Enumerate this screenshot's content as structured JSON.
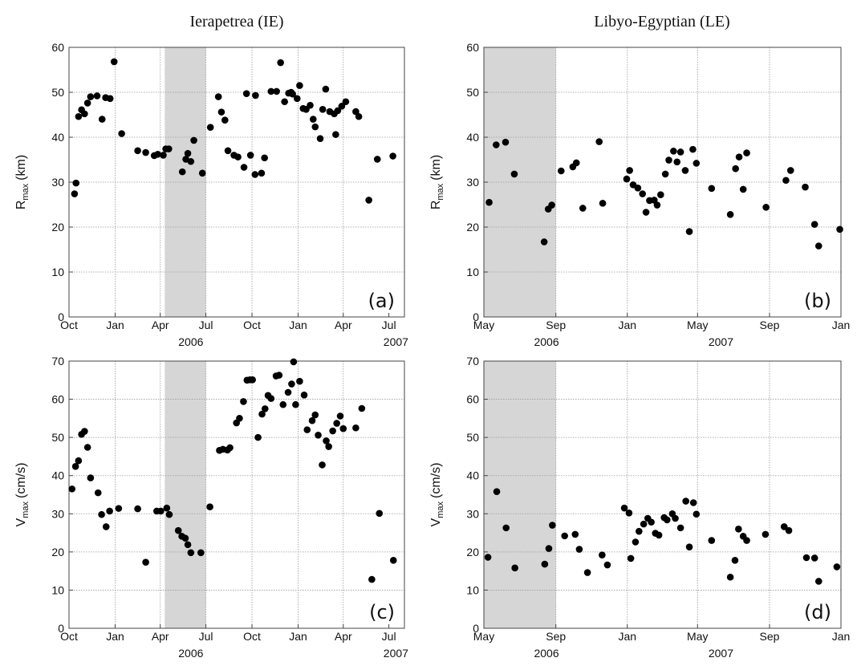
{
  "chart_data": [
    {
      "id": "a",
      "type": "scatter",
      "title": "Ierapetrea (IE)",
      "panel_label": "(a)",
      "ylabel": "R",
      "ylabel_sub": "max",
      "ylabel_unit": "(km)",
      "x_range": [
        "2005-10-01",
        "2007-08-01"
      ],
      "ylim": [
        0,
        60
      ],
      "yticks": [
        0,
        10,
        20,
        30,
        40,
        50,
        60
      ],
      "x_ticks": [
        {
          "date": "2005-10-01",
          "label": "Oct"
        },
        {
          "date": "2006-01-01",
          "label": "Jan"
        },
        {
          "date": "2006-04-01",
          "label": "Apr"
        },
        {
          "date": "2006-07-01",
          "label": "Jul"
        },
        {
          "date": "2006-10-01",
          "label": "Oct"
        },
        {
          "date": "2007-01-01",
          "label": "Jan"
        },
        {
          "date": "2007-04-01",
          "label": "Apr"
        },
        {
          "date": "2007-07-01",
          "label": "Jul"
        }
      ],
      "years": [
        {
          "label": "2006",
          "date": "2006-06-01"
        },
        {
          "label": "2007",
          "date": "2007-07-15"
        }
      ],
      "shaded": [
        "2006-04-10",
        "2006-07-01"
      ],
      "grid": true,
      "points": [
        [
          "2005-10-12",
          27.4
        ],
        [
          "2005-10-15",
          29.8
        ],
        [
          "2005-10-20",
          44.6
        ],
        [
          "2005-10-26",
          46.1
        ],
        [
          "2005-11-01",
          45.2
        ],
        [
          "2005-11-07",
          47.6
        ],
        [
          "2005-11-13",
          49.0
        ],
        [
          "2005-11-26",
          49.2
        ],
        [
          "2005-12-06",
          44.0
        ],
        [
          "2005-12-13",
          48.8
        ],
        [
          "2005-12-22",
          48.6
        ],
        [
          "2005-12-30",
          56.8
        ],
        [
          "2006-01-14",
          40.8
        ],
        [
          "2006-02-15",
          37.0
        ],
        [
          "2006-03-03",
          36.6
        ],
        [
          "2006-03-20",
          35.9
        ],
        [
          "2006-03-27",
          36.2
        ],
        [
          "2006-04-07",
          36.0
        ],
        [
          "2006-04-12",
          37.4
        ],
        [
          "2006-04-18",
          37.4
        ],
        [
          "2006-05-15",
          32.3
        ],
        [
          "2006-05-22",
          35.1
        ],
        [
          "2006-05-26",
          36.4
        ],
        [
          "2006-06-01",
          34.6
        ],
        [
          "2006-06-07",
          39.3
        ],
        [
          "2006-06-24",
          32.0
        ],
        [
          "2006-07-10",
          42.2
        ],
        [
          "2006-07-26",
          49.0
        ],
        [
          "2006-08-01",
          45.6
        ],
        [
          "2006-08-08",
          43.8
        ],
        [
          "2006-08-14",
          37.0
        ],
        [
          "2006-08-26",
          36.0
        ],
        [
          "2006-09-03",
          35.6
        ],
        [
          "2006-09-15",
          33.3
        ],
        [
          "2006-09-20",
          49.7
        ],
        [
          "2006-09-28",
          36.0
        ],
        [
          "2006-10-07",
          31.7
        ],
        [
          "2006-10-08",
          49.3
        ],
        [
          "2006-10-20",
          32.0
        ],
        [
          "2006-10-26",
          35.4
        ],
        [
          "2006-11-08",
          50.2
        ],
        [
          "2006-11-19",
          50.2
        ],
        [
          "2006-11-27",
          56.6
        ],
        [
          "2006-12-05",
          47.9
        ],
        [
          "2006-12-13",
          49.8
        ],
        [
          "2006-12-18",
          50.0
        ],
        [
          "2006-12-21",
          49.6
        ],
        [
          "2006-12-30",
          48.6
        ],
        [
          "2007-01-04",
          51.5
        ],
        [
          "2007-01-11",
          46.4
        ],
        [
          "2007-01-17",
          46.2
        ],
        [
          "2007-01-25",
          47.1
        ],
        [
          "2007-01-31",
          44.0
        ],
        [
          "2007-02-04",
          42.3
        ],
        [
          "2007-02-14",
          39.7
        ],
        [
          "2007-02-19",
          46.2
        ],
        [
          "2007-02-25",
          50.7
        ],
        [
          "2007-03-05",
          45.7
        ],
        [
          "2007-03-14",
          45.2
        ],
        [
          "2007-03-17",
          40.6
        ],
        [
          "2007-03-21",
          45.9
        ],
        [
          "2007-03-29",
          46.9
        ],
        [
          "2007-04-06",
          47.9
        ],
        [
          "2007-04-26",
          45.7
        ],
        [
          "2007-05-02",
          44.6
        ],
        [
          "2007-05-22",
          26.0
        ],
        [
          "2007-06-08",
          35.1
        ],
        [
          "2007-07-09",
          35.8
        ]
      ]
    },
    {
      "id": "b",
      "type": "scatter",
      "title": "Libyo-Egyptian (LE)",
      "panel_label": "(b)",
      "ylabel": "R",
      "ylabel_sub": "max",
      "ylabel_unit": "(km)",
      "x_range": [
        "2006-05-01",
        "2008-01-01"
      ],
      "ylim": [
        0,
        60
      ],
      "yticks": [
        0,
        10,
        20,
        30,
        40,
        50,
        60
      ],
      "x_ticks": [
        {
          "date": "2006-05-01",
          "label": "May"
        },
        {
          "date": "2006-09-01",
          "label": "Sep"
        },
        {
          "date": "2007-01-01",
          "label": "Jan"
        },
        {
          "date": "2007-05-01",
          "label": "May"
        },
        {
          "date": "2007-09-01",
          "label": "Sep"
        },
        {
          "date": "2008-01-01",
          "label": "Jan"
        }
      ],
      "years": [
        {
          "label": "2006",
          "date": "2006-08-16"
        },
        {
          "label": "2007",
          "date": "2007-06-10"
        }
      ],
      "shaded": [
        "2006-05-01",
        "2006-09-01"
      ],
      "grid": true,
      "points": [
        [
          "2006-05-10",
          25.5
        ],
        [
          "2006-05-22",
          38.3
        ],
        [
          "2006-06-07",
          38.9
        ],
        [
          "2006-06-22",
          31.8
        ],
        [
          "2006-08-12",
          16.7
        ],
        [
          "2006-08-19",
          24.0
        ],
        [
          "2006-08-25",
          24.9
        ],
        [
          "2006-09-10",
          32.5
        ],
        [
          "2006-09-30",
          33.4
        ],
        [
          "2006-10-06",
          34.3
        ],
        [
          "2006-10-17",
          24.2
        ],
        [
          "2006-11-14",
          39.0
        ],
        [
          "2006-11-20",
          25.3
        ],
        [
          "2006-12-31",
          30.7
        ],
        [
          "2007-01-05",
          32.6
        ],
        [
          "2007-01-11",
          29.4
        ],
        [
          "2007-01-19",
          28.7
        ],
        [
          "2007-01-27",
          27.4
        ],
        [
          "2007-02-02",
          23.3
        ],
        [
          "2007-02-08",
          25.9
        ],
        [
          "2007-02-16",
          26.0
        ],
        [
          "2007-02-21",
          24.9
        ],
        [
          "2007-02-27",
          27.2
        ],
        [
          "2007-03-07",
          31.8
        ],
        [
          "2007-03-13",
          34.9
        ],
        [
          "2007-03-21",
          36.9
        ],
        [
          "2007-03-27",
          34.5
        ],
        [
          "2007-04-02",
          36.7
        ],
        [
          "2007-04-10",
          32.6
        ],
        [
          "2007-04-17",
          19.0
        ],
        [
          "2007-04-23",
          37.3
        ],
        [
          "2007-04-29",
          34.2
        ],
        [
          "2007-05-25",
          28.6
        ],
        [
          "2007-06-26",
          22.8
        ],
        [
          "2007-07-05",
          33.0
        ],
        [
          "2007-07-11",
          35.6
        ],
        [
          "2007-07-18",
          28.4
        ],
        [
          "2007-07-24",
          36.5
        ],
        [
          "2007-08-26",
          24.4
        ],
        [
          "2007-09-29",
          30.4
        ],
        [
          "2007-10-07",
          32.6
        ],
        [
          "2007-11-01",
          28.9
        ],
        [
          "2007-11-17",
          20.6
        ],
        [
          "2007-11-24",
          15.8
        ],
        [
          "2007-12-30",
          19.5
        ]
      ]
    },
    {
      "id": "c",
      "type": "scatter",
      "title": "",
      "panel_label": "(c)",
      "ylabel": "V",
      "ylabel_sub": "max",
      "ylabel_unit": "(cm/s)",
      "x_range": [
        "2005-10-01",
        "2007-08-01"
      ],
      "ylim": [
        0,
        70
      ],
      "yticks": [
        0,
        10,
        20,
        30,
        40,
        50,
        60,
        70
      ],
      "x_ticks": [
        {
          "date": "2005-10-01",
          "label": "Oct"
        },
        {
          "date": "2006-01-01",
          "label": "Jan"
        },
        {
          "date": "2006-04-01",
          "label": "Apr"
        },
        {
          "date": "2006-07-01",
          "label": "Jul"
        },
        {
          "date": "2006-10-01",
          "label": "Oct"
        },
        {
          "date": "2007-01-01",
          "label": "Jan"
        },
        {
          "date": "2007-04-01",
          "label": "Apr"
        },
        {
          "date": "2007-07-01",
          "label": "Jul"
        }
      ],
      "years": [
        {
          "label": "2006",
          "date": "2006-06-01"
        },
        {
          "label": "2007",
          "date": "2007-07-15"
        }
      ],
      "shaded": [
        "2006-04-10",
        "2006-07-01"
      ],
      "grid": true,
      "points": [
        [
          "2005-10-07",
          36.5
        ],
        [
          "2005-10-14",
          42.4
        ],
        [
          "2005-10-20",
          43.9
        ],
        [
          "2005-10-26",
          50.8
        ],
        [
          "2005-11-01",
          51.6
        ],
        [
          "2005-11-07",
          47.4
        ],
        [
          "2005-11-13",
          39.4
        ],
        [
          "2005-11-28",
          35.5
        ],
        [
          "2005-12-05",
          29.8
        ],
        [
          "2005-12-14",
          26.6
        ],
        [
          "2005-12-21",
          30.7
        ],
        [
          "2006-01-08",
          31.4
        ],
        [
          "2006-02-15",
          31.3
        ],
        [
          "2006-03-03",
          17.3
        ],
        [
          "2006-03-25",
          30.7
        ],
        [
          "2006-04-02",
          30.7
        ],
        [
          "2006-04-14",
          31.5
        ],
        [
          "2006-04-19",
          29.8
        ],
        [
          "2006-05-07",
          25.6
        ],
        [
          "2006-05-14",
          24.1
        ],
        [
          "2006-05-21",
          23.6
        ],
        [
          "2006-05-26",
          21.9
        ],
        [
          "2006-06-01",
          19.8
        ],
        [
          "2006-06-21",
          19.8
        ],
        [
          "2006-07-09",
          31.8
        ],
        [
          "2006-07-28",
          46.6
        ],
        [
          "2006-08-04",
          46.9
        ],
        [
          "2006-08-13",
          46.7
        ],
        [
          "2006-08-18",
          47.3
        ],
        [
          "2006-08-31",
          53.8
        ],
        [
          "2006-09-06",
          55.0
        ],
        [
          "2006-09-14",
          59.4
        ],
        [
          "2006-09-21",
          65.0
        ],
        [
          "2006-09-27",
          65.1
        ],
        [
          "2006-10-02",
          65.1
        ],
        [
          "2006-10-13",
          50.0
        ],
        [
          "2006-10-21",
          56.1
        ],
        [
          "2006-10-27",
          57.5
        ],
        [
          "2006-11-02",
          61.0
        ],
        [
          "2006-11-08",
          60.2
        ],
        [
          "2006-11-18",
          66.1
        ],
        [
          "2006-11-24",
          66.3
        ],
        [
          "2006-12-02",
          58.6
        ],
        [
          "2006-12-12",
          61.8
        ],
        [
          "2006-12-19",
          64.0
        ],
        [
          "2006-12-23",
          69.8
        ],
        [
          "2006-12-27",
          58.6
        ],
        [
          "2007-01-04",
          64.7
        ],
        [
          "2007-01-13",
          61.1
        ],
        [
          "2007-01-19",
          52.0
        ],
        [
          "2007-01-29",
          54.4
        ],
        [
          "2007-02-04",
          55.9
        ],
        [
          "2007-02-10",
          50.6
        ],
        [
          "2007-02-18",
          42.8
        ],
        [
          "2007-02-26",
          49.1
        ],
        [
          "2007-03-03",
          47.6
        ],
        [
          "2007-03-11",
          51.7
        ],
        [
          "2007-03-19",
          53.7
        ],
        [
          "2007-03-26",
          55.6
        ],
        [
          "2007-04-01",
          52.3
        ],
        [
          "2007-04-26",
          52.5
        ],
        [
          "2007-05-08",
          57.6
        ],
        [
          "2007-05-28",
          12.8
        ],
        [
          "2007-06-12",
          30.1
        ],
        [
          "2007-07-10",
          17.8
        ]
      ]
    },
    {
      "id": "d",
      "type": "scatter",
      "title": "",
      "panel_label": "(d)",
      "ylabel": "V",
      "ylabel_sub": "max",
      "ylabel_unit": "(cm/s)",
      "x_range": [
        "2006-05-01",
        "2008-01-01"
      ],
      "ylim": [
        0,
        70
      ],
      "yticks": [
        0,
        10,
        20,
        30,
        40,
        50,
        60,
        70
      ],
      "x_ticks": [
        {
          "date": "2006-05-01",
          "label": "May"
        },
        {
          "date": "2006-09-01",
          "label": "Sep"
        },
        {
          "date": "2007-01-01",
          "label": "Jan"
        },
        {
          "date": "2007-05-01",
          "label": "May"
        },
        {
          "date": "2007-09-01",
          "label": "Sep"
        },
        {
          "date": "2008-01-01",
          "label": "Jan"
        }
      ],
      "years": [
        {
          "label": "2006",
          "date": "2006-08-16"
        },
        {
          "label": "2007",
          "date": "2007-06-10"
        }
      ],
      "shaded": [
        "2006-05-01",
        "2006-09-01"
      ],
      "grid": true,
      "points": [
        [
          "2006-05-08",
          18.6
        ],
        [
          "2006-05-23",
          35.8
        ],
        [
          "2006-06-08",
          26.3
        ],
        [
          "2006-06-23",
          15.8
        ],
        [
          "2006-08-13",
          16.8
        ],
        [
          "2006-08-20",
          20.9
        ],
        [
          "2006-08-26",
          27.0
        ],
        [
          "2006-09-16",
          24.2
        ],
        [
          "2006-10-04",
          24.6
        ],
        [
          "2006-10-11",
          20.7
        ],
        [
          "2006-10-25",
          14.6
        ],
        [
          "2006-11-19",
          19.2
        ],
        [
          "2006-11-28",
          16.6
        ],
        [
          "2006-12-27",
          31.5
        ],
        [
          "2007-01-04",
          30.2
        ],
        [
          "2007-01-07",
          18.3
        ],
        [
          "2007-01-15",
          22.6
        ],
        [
          "2007-01-21",
          25.4
        ],
        [
          "2007-01-29",
          27.3
        ],
        [
          "2007-02-05",
          28.8
        ],
        [
          "2007-02-11",
          27.8
        ],
        [
          "2007-02-18",
          24.9
        ],
        [
          "2007-02-24",
          24.4
        ],
        [
          "2007-03-05",
          29.0
        ],
        [
          "2007-03-10",
          28.4
        ],
        [
          "2007-03-19",
          30.0
        ],
        [
          "2007-03-24",
          28.8
        ],
        [
          "2007-04-02",
          26.3
        ],
        [
          "2007-04-11",
          33.3
        ],
        [
          "2007-04-17",
          21.3
        ],
        [
          "2007-04-24",
          32.9
        ],
        [
          "2007-04-29",
          29.9
        ],
        [
          "2007-05-25",
          23.0
        ],
        [
          "2007-06-26",
          13.4
        ],
        [
          "2007-07-04",
          17.8
        ],
        [
          "2007-07-10",
          26.0
        ],
        [
          "2007-07-18",
          24.1
        ],
        [
          "2007-07-24",
          23.0
        ],
        [
          "2007-08-25",
          24.6
        ],
        [
          "2007-09-26",
          26.6
        ],
        [
          "2007-10-04",
          25.6
        ],
        [
          "2007-11-03",
          18.5
        ],
        [
          "2007-11-17",
          18.4
        ],
        [
          "2007-11-24",
          12.3
        ],
        [
          "2007-12-25",
          16.1
        ]
      ]
    }
  ]
}
